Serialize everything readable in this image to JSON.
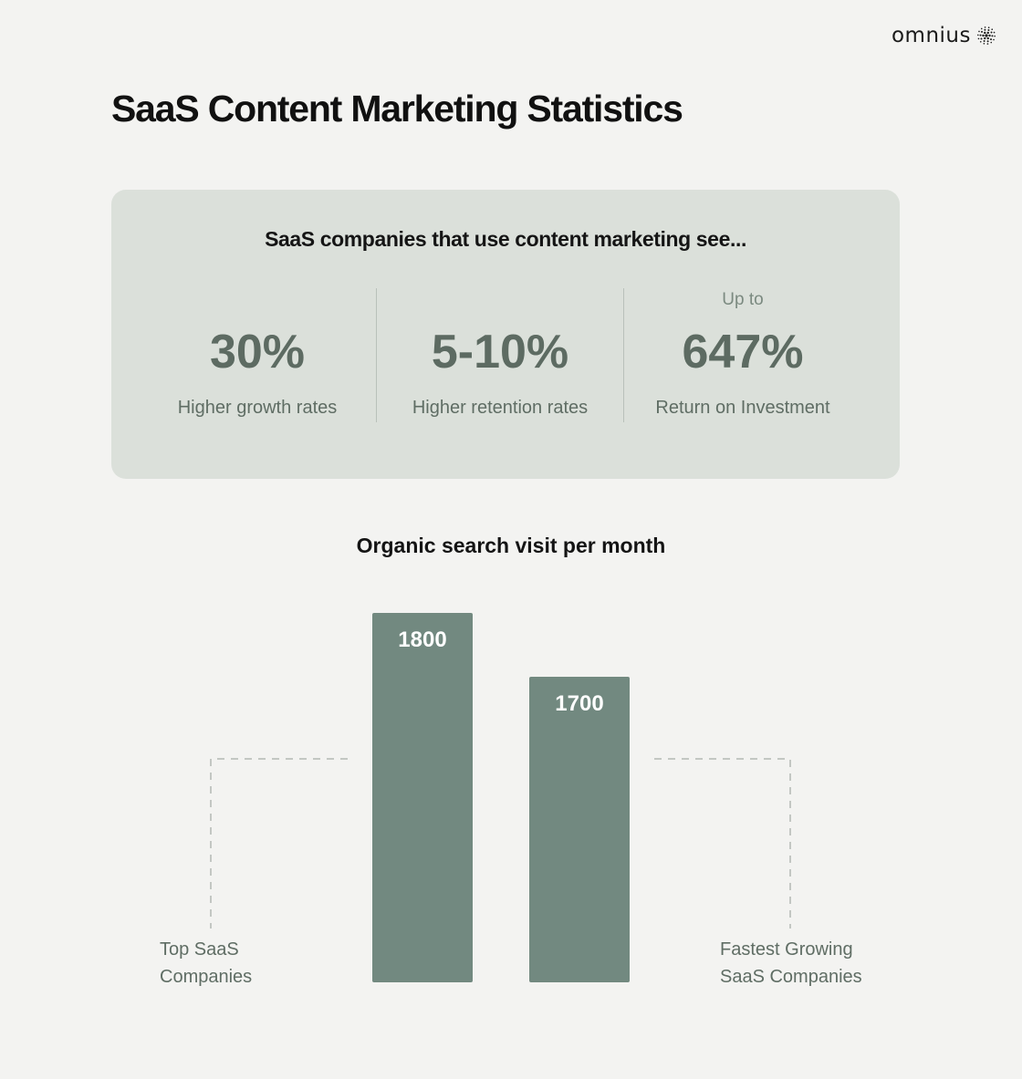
{
  "brand": {
    "name": "omnius",
    "icon": "dotted-sphere-icon",
    "color": "#1a1a1a"
  },
  "page": {
    "title": "SaaS Content Marketing Statistics"
  },
  "stats_card": {
    "heading": "SaaS companies that use content marketing see...",
    "stats": [
      {
        "prefix": "",
        "value": "30%",
        "label": "Higher growth rates"
      },
      {
        "prefix": "",
        "value": "5-10%",
        "label": "Higher retention rates"
      },
      {
        "prefix": "Up to",
        "value": "647%",
        "label": "Return on Investment"
      }
    ]
  },
  "chart_data": {
    "type": "bar",
    "title": "Organic search visit per month",
    "categories": [
      [
        "Top SaaS",
        "Companies"
      ],
      [
        "Fastest Growing",
        "SaaS Companies"
      ]
    ],
    "values": [
      1800,
      1700
    ],
    "ylim": [
      0,
      1800
    ],
    "grid": false,
    "colors": {
      "bar": "#728980",
      "bar_label": "#ffffff"
    }
  }
}
